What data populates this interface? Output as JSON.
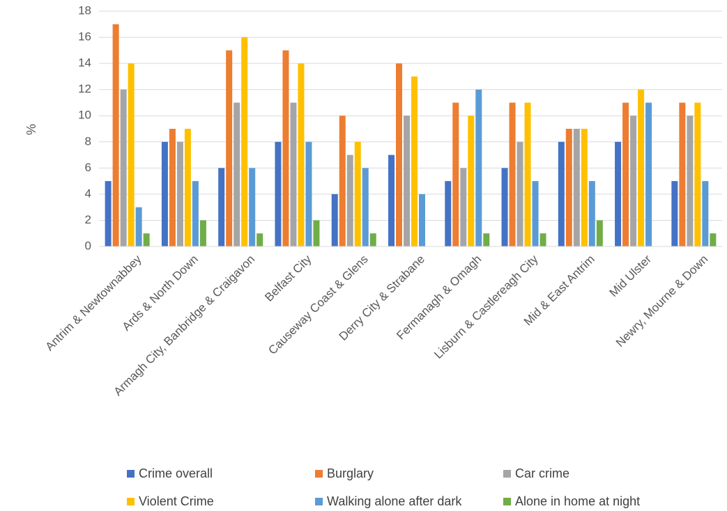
{
  "chart_data": {
    "type": "bar",
    "title": "",
    "xlabel": "",
    "ylabel": "%",
    "ylim": [
      0,
      18
    ],
    "yticks": [
      0,
      2,
      4,
      6,
      8,
      10,
      12,
      14,
      16,
      18
    ],
    "grid": true,
    "legend_position": "bottom",
    "categories": [
      "Antrim & Newtownabbey",
      "Ards & North Down",
      "Armagh City, Banbridge & Craigavon",
      "Belfast City",
      "Causeway Coast & Glens",
      "Derry City & Strabane",
      "Fermanagh & Omagh",
      "Lisburn & Castlereagh City",
      "Mid & East Antrim",
      "Mid Ulster",
      "Newry, Mourne & Down"
    ],
    "series": [
      {
        "name": "Crime overall",
        "color": "#4472C4",
        "values": [
          5,
          8,
          6,
          8,
          4,
          7,
          5,
          6,
          8,
          8,
          5
        ]
      },
      {
        "name": "Burglary",
        "color": "#ED7D31",
        "values": [
          17,
          9,
          15,
          15,
          10,
          14,
          11,
          11,
          9,
          11,
          11
        ]
      },
      {
        "name": "Car crime",
        "color": "#A5A5A5",
        "values": [
          12,
          8,
          11,
          11,
          7,
          10,
          6,
          8,
          9,
          10,
          10
        ]
      },
      {
        "name": "Violent Crime",
        "color": "#FFC000",
        "values": [
          14,
          9,
          16,
          14,
          8,
          13,
          10,
          11,
          9,
          12,
          11
        ]
      },
      {
        "name": "Walking alone after dark",
        "color": "#5B9BD5",
        "values": [
          3,
          5,
          6,
          8,
          6,
          4,
          12,
          5,
          5,
          11,
          5
        ]
      },
      {
        "name": "Alone in home at night",
        "color": "#70AD47",
        "values": [
          1,
          2,
          1,
          2,
          1,
          0,
          1,
          1,
          2,
          0,
          1
        ]
      }
    ]
  }
}
